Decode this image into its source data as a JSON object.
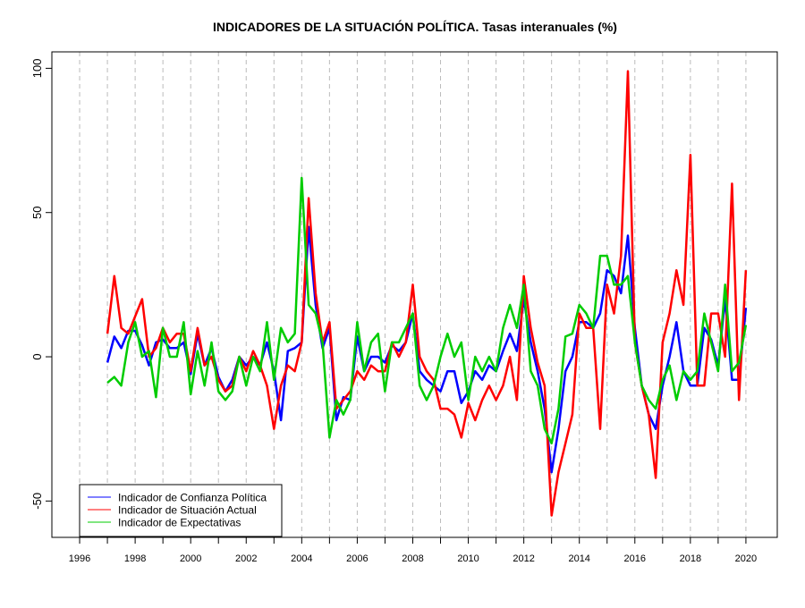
{
  "chart_data": {
    "type": "line",
    "title": "INDICADORES DE LA SITUACIÓN POLÍTICA. Tasas interanuales (%)",
    "xlabel": "",
    "ylabel": "",
    "xlim": [
      1995.0,
      2021.13
    ],
    "ylim": [
      -62.6,
      105.7
    ],
    "x_ticks": [
      1996,
      1997,
      1998,
      1999,
      2000,
      2001,
      2002,
      2003,
      2004,
      2005,
      2006,
      2007,
      2008,
      2009,
      2010,
      2011,
      2012,
      2013,
      2014,
      2015,
      2016,
      2017,
      2018,
      2019,
      2020
    ],
    "x_tick_labels": [
      "1996",
      "1998",
      "2000",
      "2002",
      "2004",
      "2006",
      "2008",
      "2010",
      "2012",
      "2014",
      "2016",
      "2018",
      "2020"
    ],
    "y_ticks": [
      -50,
      0,
      50,
      100
    ],
    "y_tick_labels": [
      "-50",
      "0",
      "50",
      "100"
    ],
    "grid": "vertical dashed at each year",
    "legend_position": "bottom-left",
    "x_start": 1997.0,
    "x_step": 0.25,
    "series": [
      {
        "name": "Indicador de Confianza Política",
        "color": "#0000ff",
        "values": [
          -2,
          7,
          3,
          9,
          9,
          4,
          -3,
          5,
          6,
          3,
          3,
          5,
          -6,
          8,
          -3,
          3,
          -7,
          -12,
          -8,
          0,
          -3,
          0,
          -3,
          5,
          -5,
          -22,
          2,
          3,
          5,
          45,
          18,
          3,
          10,
          -22,
          -14,
          -15,
          7,
          -5,
          0,
          0,
          -2,
          4,
          2,
          5,
          15,
          -5,
          -8,
          -10,
          -12,
          -5,
          -5,
          -16,
          -12,
          -5,
          -8,
          -3,
          -5,
          2,
          8,
          2,
          20,
          5,
          -5,
          -18,
          -40,
          -25,
          -5,
          0,
          12,
          12,
          10,
          15,
          30,
          28,
          22,
          42,
          10,
          -10,
          -20,
          -25,
          -10,
          0,
          12,
          -5,
          -10,
          -10,
          10,
          6,
          -3,
          20,
          -8,
          -8,
          17
        ]
      },
      {
        "name": "Indicador de Situación Actual",
        "color": "#ff0000",
        "values": [
          8,
          28,
          10,
          8,
          14,
          20,
          0,
          3,
          10,
          5,
          8,
          8,
          -5,
          10,
          -3,
          0,
          -8,
          -12,
          -10,
          0,
          -5,
          2,
          -3,
          -10,
          -25,
          -10,
          -3,
          -5,
          5,
          55,
          22,
          5,
          12,
          -18,
          -15,
          -12,
          -5,
          -8,
          -3,
          -5,
          -5,
          5,
          0,
          5,
          25,
          0,
          -5,
          -8,
          -18,
          -18,
          -20,
          -28,
          -16,
          -22,
          -15,
          -10,
          -15,
          -10,
          0,
          -15,
          28,
          10,
          -2,
          -10,
          -55,
          -40,
          -30,
          -20,
          15,
          10,
          10,
          -25,
          25,
          15,
          35,
          99,
          5,
          -10,
          -20,
          -42,
          5,
          15,
          30,
          18,
          70,
          -10,
          -10,
          15,
          15,
          0,
          60,
          -15,
          30
        ]
      },
      {
        "name": "Indicador de Expectativas",
        "color": "#00cc00",
        "values": [
          -9,
          -7,
          -10,
          5,
          12,
          0,
          2,
          -14,
          10,
          0,
          0,
          12,
          -13,
          2,
          -10,
          5,
          -12,
          -15,
          -12,
          0,
          -10,
          0,
          -5,
          12,
          -8,
          10,
          5,
          8,
          62,
          18,
          15,
          5,
          -28,
          -15,
          -20,
          -15,
          12,
          -5,
          5,
          8,
          -12,
          5,
          5,
          10,
          15,
          -10,
          -15,
          -10,
          0,
          8,
          0,
          5,
          -15,
          0,
          -5,
          0,
          -5,
          10,
          18,
          10,
          25,
          -5,
          -10,
          -25,
          -30,
          -18,
          7,
          8,
          18,
          15,
          10,
          35,
          35,
          25,
          25,
          28,
          5,
          -10,
          -15,
          -18,
          -8,
          -3,
          -15,
          -5,
          -8,
          -5,
          15,
          5,
          -5,
          25,
          -5,
          -2,
          11
        ]
      }
    ]
  }
}
